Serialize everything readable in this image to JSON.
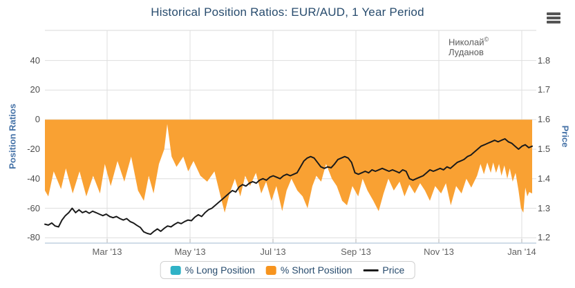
{
  "title": "Historical Position Ratios: EUR/AUD, 1 Year Period",
  "watermark": {
    "name": "Николай",
    "mark": "©",
    "surname": "Луданов"
  },
  "menu": {
    "icon": "hamburger-icon"
  },
  "colors": {
    "title": "#274b6d",
    "axis_title": "#4572a7",
    "grid": "#dedede",
    "x_axis_line": "#c0d0e0",
    "tick_mark": "#b3b3b3",
    "short_area": "#f9a133",
    "long_area": "#2fb2c6",
    "price_line": "#1a1a1a"
  },
  "legend": [
    {
      "label": "% Long Position",
      "color": "#2fb2c6",
      "symbol": "box"
    },
    {
      "label": "% Short Position",
      "color": "#f7941e",
      "symbol": "box"
    },
    {
      "label": "Price",
      "color": "#1a1a1a",
      "symbol": "line"
    }
  ],
  "chart_data": {
    "type": "area+line",
    "title": "Historical Position Ratios: EUR/AUD, 1 Year Period",
    "grid": "on",
    "legend_position": "bottom",
    "left_axis": {
      "title": "Position Ratios",
      "tick_labels": [
        "40",
        "20",
        "0",
        "-20",
        "-40",
        "-60",
        "-80"
      ],
      "tick_values": [
        40,
        20,
        0,
        -20,
        -40,
        -60,
        -80
      ],
      "min": -83.6,
      "max": 60.4
    },
    "right_axis": {
      "title": "Price",
      "tick_labels": [
        "1.8",
        "1.7",
        "1.6",
        "1.5",
        "1.4",
        "1.3",
        "1.2"
      ],
      "tick_values": [
        1.8,
        1.7,
        1.6,
        1.5,
        1.4,
        1.3,
        1.2
      ],
      "min": 1.182,
      "max": 1.902
    },
    "x_axis": {
      "ticks": [
        {
          "label": "Mar '13",
          "f": 0.1277
        },
        {
          "label": "May '13",
          "f": 0.2979
        },
        {
          "label": "Jul '13",
          "f": 0.4681
        },
        {
          "label": "Sep '13",
          "f": 0.6383
        },
        {
          "label": "Nov '13",
          "f": 0.8085
        },
        {
          "label": "Jan '14",
          "f": 0.9787
        }
      ]
    },
    "series": [
      {
        "name": "% Long Position",
        "type": "area",
        "axis": "left",
        "color": "#2fb2c6",
        "points": []
      },
      {
        "name": "% Short Position",
        "type": "area",
        "axis": "left",
        "color": "#f9a133",
        "points": [
          [
            0.0,
            -48
          ],
          [
            0.007,
            -52
          ],
          [
            0.018,
            -35
          ],
          [
            0.033,
            -47
          ],
          [
            0.043,
            -33
          ],
          [
            0.057,
            -50
          ],
          [
            0.071,
            -35
          ],
          [
            0.085,
            -52
          ],
          [
            0.099,
            -38
          ],
          [
            0.113,
            -50
          ],
          [
            0.123,
            -30
          ],
          [
            0.135,
            -45
          ],
          [
            0.149,
            -28
          ],
          [
            0.163,
            -42
          ],
          [
            0.177,
            -25
          ],
          [
            0.191,
            -48
          ],
          [
            0.203,
            -55
          ],
          [
            0.213,
            -38
          ],
          [
            0.223,
            -50
          ],
          [
            0.234,
            -30
          ],
          [
            0.245,
            -20
          ],
          [
            0.251,
            -3
          ],
          [
            0.26,
            -25
          ],
          [
            0.27,
            -32
          ],
          [
            0.284,
            -25
          ],
          [
            0.294,
            -35
          ],
          [
            0.305,
            -28
          ],
          [
            0.319,
            -38
          ],
          [
            0.333,
            -42
          ],
          [
            0.348,
            -35
          ],
          [
            0.359,
            -50
          ],
          [
            0.369,
            -63
          ],
          [
            0.379,
            -50
          ],
          [
            0.39,
            -40
          ],
          [
            0.401,
            -52
          ],
          [
            0.411,
            -38
          ],
          [
            0.421,
            -45
          ],
          [
            0.433,
            -36
          ],
          [
            0.444,
            -50
          ],
          [
            0.454,
            -42
          ],
          [
            0.465,
            -55
          ],
          [
            0.475,
            -45
          ],
          [
            0.487,
            -62
          ],
          [
            0.496,
            -48
          ],
          [
            0.506,
            -40
          ],
          [
            0.518,
            -48
          ],
          [
            0.529,
            -52
          ],
          [
            0.539,
            -60
          ],
          [
            0.549,
            -45
          ],
          [
            0.557,
            -38
          ],
          [
            0.567,
            -42
          ],
          [
            0.577,
            -30
          ],
          [
            0.589,
            -40
          ],
          [
            0.599,
            -45
          ],
          [
            0.61,
            -55
          ],
          [
            0.62,
            -58
          ],
          [
            0.631,
            -45
          ],
          [
            0.643,
            -52
          ],
          [
            0.652,
            -40
          ],
          [
            0.662,
            -48
          ],
          [
            0.674,
            -55
          ],
          [
            0.685,
            -62
          ],
          [
            0.695,
            -50
          ],
          [
            0.705,
            -40
          ],
          [
            0.716,
            -48
          ],
          [
            0.728,
            -42
          ],
          [
            0.738,
            -52
          ],
          [
            0.748,
            -44
          ],
          [
            0.759,
            -50
          ],
          [
            0.77,
            -43
          ],
          [
            0.78,
            -48
          ],
          [
            0.79,
            -55
          ],
          [
            0.801,
            -45
          ],
          [
            0.813,
            -50
          ],
          [
            0.823,
            -43
          ],
          [
            0.833,
            -58
          ],
          [
            0.844,
            -45
          ],
          [
            0.855,
            -50
          ],
          [
            0.865,
            -40
          ],
          [
            0.875,
            -46
          ],
          [
            0.887,
            -38
          ],
          [
            0.894,
            -30
          ],
          [
            0.901,
            -37
          ],
          [
            0.908,
            -29
          ],
          [
            0.915,
            -36
          ],
          [
            0.92,
            -29
          ],
          [
            0.926,
            -36
          ],
          [
            0.932,
            -30
          ],
          [
            0.937,
            -38
          ],
          [
            0.943,
            -31
          ],
          [
            0.949,
            -40
          ],
          [
            0.954,
            -33
          ],
          [
            0.96,
            -42
          ],
          [
            0.966,
            -36
          ],
          [
            0.972,
            -48
          ],
          [
            0.977,
            -60
          ],
          [
            0.982,
            -63
          ],
          [
            0.986,
            -46
          ],
          [
            0.99,
            -52
          ],
          [
            0.994,
            -49
          ],
          [
            1.0,
            -50
          ]
        ]
      },
      {
        "name": "Price",
        "type": "line",
        "axis": "right",
        "color": "#1a1a1a",
        "values": [
          1.246,
          1.243,
          1.25,
          1.24,
          1.237,
          1.26,
          1.275,
          1.285,
          1.3,
          1.285,
          1.295,
          1.285,
          1.29,
          1.283,
          1.29,
          1.285,
          1.28,
          1.275,
          1.28,
          1.272,
          1.268,
          1.272,
          1.265,
          1.26,
          1.265,
          1.255,
          1.25,
          1.242,
          1.235,
          1.22,
          1.215,
          1.212,
          1.222,
          1.23,
          1.222,
          1.232,
          1.24,
          1.237,
          1.245,
          1.252,
          1.248,
          1.255,
          1.26,
          1.258,
          1.27,
          1.278,
          1.272,
          1.285,
          1.295,
          1.3,
          1.31,
          1.32,
          1.33,
          1.34,
          1.35,
          1.36,
          1.355,
          1.372,
          1.38,
          1.375,
          1.385,
          1.39,
          1.385,
          1.395,
          1.4,
          1.395,
          1.405,
          1.41,
          1.405,
          1.4,
          1.41,
          1.415,
          1.41,
          1.415,
          1.42,
          1.44,
          1.46,
          1.47,
          1.475,
          1.47,
          1.455,
          1.44,
          1.435,
          1.44,
          1.437,
          1.45,
          1.465,
          1.47,
          1.475,
          1.47,
          1.455,
          1.42,
          1.415,
          1.42,
          1.425,
          1.42,
          1.43,
          1.425,
          1.43,
          1.435,
          1.43,
          1.425,
          1.43,
          1.425,
          1.42,
          1.43,
          1.425,
          1.4,
          1.395,
          1.4,
          1.405,
          1.41,
          1.42,
          1.43,
          1.425,
          1.43,
          1.435,
          1.43,
          1.44,
          1.435,
          1.445,
          1.455,
          1.46,
          1.465,
          1.475,
          1.48,
          1.49,
          1.5,
          1.51,
          1.515,
          1.52,
          1.525,
          1.53,
          1.525,
          1.53,
          1.535,
          1.525,
          1.52,
          1.51,
          1.5,
          1.51,
          1.515,
          1.505,
          1.51
        ]
      }
    ]
  }
}
